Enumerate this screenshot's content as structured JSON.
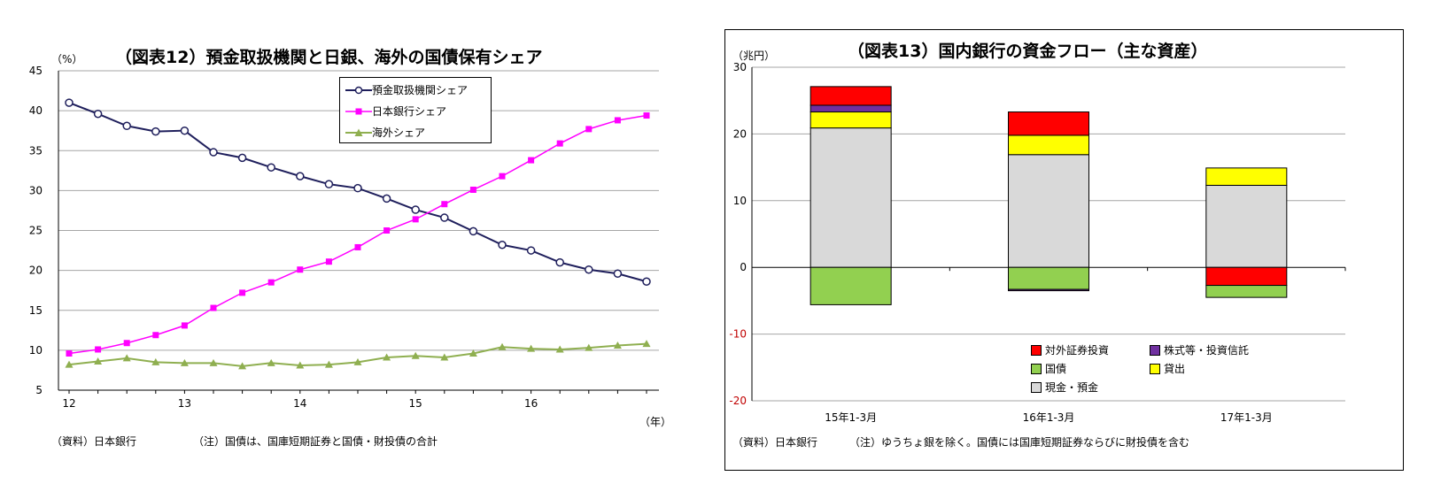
{
  "charts": {
    "left": {
      "title": "（図表12）預金取扱機関と日銀、海外の国債保有シェア",
      "unit": "（%）",
      "x_unit": "（年）",
      "source": "（資料）日本銀行",
      "note": "（注）国債は、国庫短期証券と国債・財投債の合計",
      "legend": [
        "預金取扱機関シェア",
        "日本銀行シェア",
        "海外シェア"
      ]
    },
    "right": {
      "title": "（図表13）国内銀行の資金フロー（主な資産）",
      "unit": "（兆円）",
      "source": "（資料）日本銀行",
      "note": "（注）ゆうちょ銀を除く。国債には国庫短期証券ならびに財投債を含む",
      "legend": [
        "対外証券投資",
        "株式等・投資信託",
        "国債",
        "貸出",
        "現金・預金"
      ]
    }
  },
  "chart_data": [
    {
      "type": "line",
      "title": "（図表12）預金取扱機関と日銀、海外の国債保有シェア",
      "ylabel": "（%）",
      "xlabel": "（年）",
      "ylim": [
        5,
        45
      ],
      "yticks": [
        5,
        10,
        15,
        20,
        25,
        30,
        35,
        40,
        45
      ],
      "x_tick_labels": [
        "12",
        "13",
        "14",
        "15",
        "16"
      ],
      "grid": true,
      "legend_position": "top-right",
      "x": [
        "12Q1",
        "12Q2",
        "12Q3",
        "12Q4",
        "13Q1",
        "13Q2",
        "13Q3",
        "13Q4",
        "14Q1",
        "14Q2",
        "14Q3",
        "14Q4",
        "15Q1",
        "15Q2",
        "15Q3",
        "15Q4",
        "16Q1",
        "16Q2",
        "16Q3",
        "16Q4",
        "17Q1"
      ],
      "series": [
        {
          "name": "預金取扱機関シェア",
          "color": "#1f1f5c",
          "marker": "circle",
          "values": [
            41.0,
            39.6,
            38.1,
            37.4,
            37.5,
            34.8,
            34.1,
            32.9,
            31.8,
            30.8,
            30.3,
            29.0,
            27.6,
            26.6,
            24.9,
            23.2,
            22.5,
            21.0,
            20.1,
            19.6,
            18.6
          ]
        },
        {
          "name": "日本銀行シェア",
          "color": "#ff00ff",
          "marker": "square",
          "values": [
            9.6,
            10.1,
            10.9,
            11.9,
            13.1,
            15.3,
            17.2,
            18.5,
            20.1,
            21.1,
            22.9,
            25.0,
            26.4,
            28.3,
            30.1,
            31.8,
            33.8,
            35.9,
            37.7,
            38.8,
            39.4
          ]
        },
        {
          "name": "海外シェア",
          "color": "#8faf50",
          "marker": "triangle",
          "values": [
            8.2,
            8.6,
            9.0,
            8.5,
            8.4,
            8.4,
            8.0,
            8.4,
            8.1,
            8.2,
            8.5,
            9.1,
            9.3,
            9.1,
            9.6,
            10.4,
            10.2,
            10.1,
            10.3,
            10.6,
            10.8
          ]
        }
      ]
    },
    {
      "type": "bar",
      "stacked": true,
      "title": "（図表13）国内銀行の資金フロー（主な資産）",
      "ylabel": "（兆円）",
      "ylim": [
        -20,
        30
      ],
      "yticks": [
        -20,
        -10,
        0,
        10,
        20,
        30
      ],
      "grid": true,
      "legend_position": "bottom-right",
      "categories": [
        "15年1-3月",
        "16年1-3月",
        "17年1-3月"
      ],
      "series": [
        {
          "name": "現金・預金",
          "color": "#d9d9d9",
          "values": [
            20.9,
            16.9,
            12.3
          ]
        },
        {
          "name": "貸出",
          "color": "#ffff00",
          "values": [
            2.4,
            2.9,
            2.6
          ]
        },
        {
          "name": "株式等・投資信託",
          "color": "#7030a0",
          "values": [
            1.0,
            0.0,
            0.0
          ]
        },
        {
          "name": "対外証券投資",
          "color": "#ff0000",
          "values": [
            2.8,
            3.5,
            -2.7
          ]
        },
        {
          "name": "国債",
          "color": "#92d050",
          "values": [
            -5.6,
            -3.3,
            -1.8
          ]
        },
        {
          "name": "株式等・投資信託(負)",
          "color": "#7030a0",
          "values": [
            0.0,
            -0.2,
            0.0
          ]
        }
      ]
    }
  ]
}
